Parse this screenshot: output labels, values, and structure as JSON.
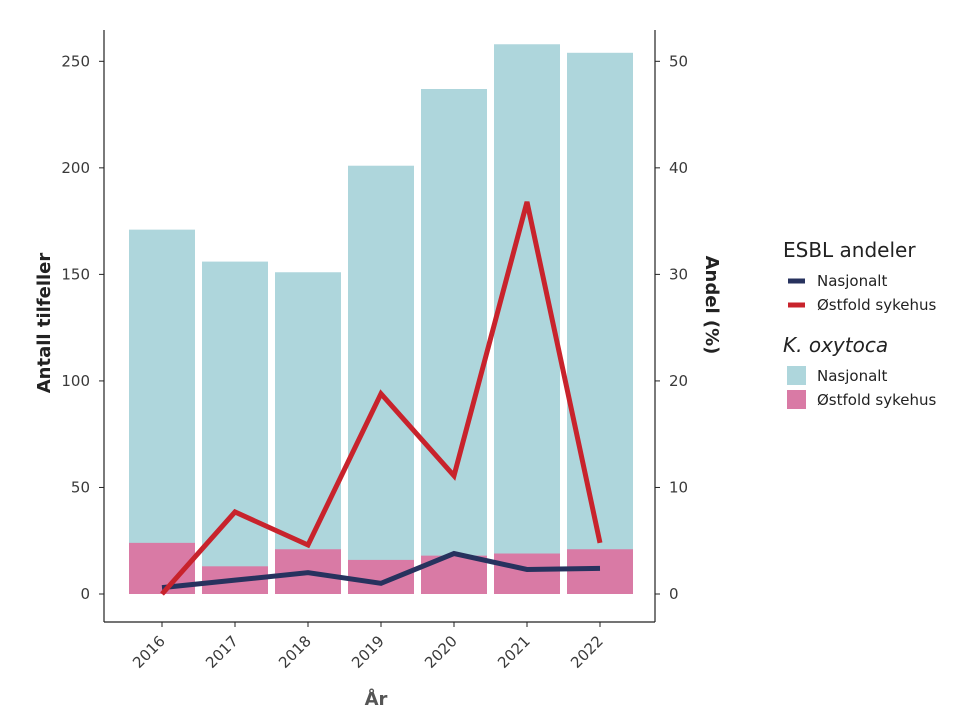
{
  "chart_data": {
    "type": "bar",
    "categories": [
      "2016",
      "2017",
      "2018",
      "2019",
      "2020",
      "2021",
      "2022"
    ],
    "bar_series": [
      {
        "name": "Nasjonalt",
        "values": [
          171,
          156,
          151,
          201,
          237,
          258,
          254
        ],
        "color": "#aed6dc"
      },
      {
        "name": "Østfold sykehus",
        "values": [
          24,
          13,
          21,
          16,
          18,
          19,
          21
        ],
        "color": "#d97aa5"
      }
    ],
    "line_series": [
      {
        "name": "Nasjonalt",
        "values": [
          0.6,
          1.3,
          2.0,
          1.0,
          3.8,
          2.3,
          2.4
        ],
        "color": "#27325e"
      },
      {
        "name": "Østfold sykehus",
        "values": [
          0.0,
          7.7,
          4.6,
          18.8,
          11.1,
          36.8,
          4.8
        ],
        "color": "#c8232c"
      }
    ],
    "xlabel": "År",
    "ylabel": "Antall tilfeller",
    "ylabel_right": "Andel (%)",
    "ylim": [
      0,
      260
    ],
    "ylim_right": [
      0,
      52
    ],
    "yticks": [
      0,
      50,
      100,
      150,
      200,
      250
    ],
    "yticks_right": [
      0,
      10,
      20,
      30,
      40,
      50
    ],
    "grid": false,
    "legend": {
      "position": "right",
      "groups": [
        {
          "title": "ESBL andeler",
          "italic": false,
          "kind": "line",
          "items": [
            {
              "label": "Nasjonalt",
              "color": "#27325e"
            },
            {
              "label": "Østfold sykehus",
              "color": "#c8232c"
            }
          ]
        },
        {
          "title": "K. oxytoca",
          "italic": true,
          "kind": "box",
          "items": [
            {
              "label": "Nasjonalt",
              "color": "#aed6dc"
            },
            {
              "label": "Østfold sykehus",
              "color": "#d97aa5"
            }
          ]
        }
      ]
    }
  }
}
